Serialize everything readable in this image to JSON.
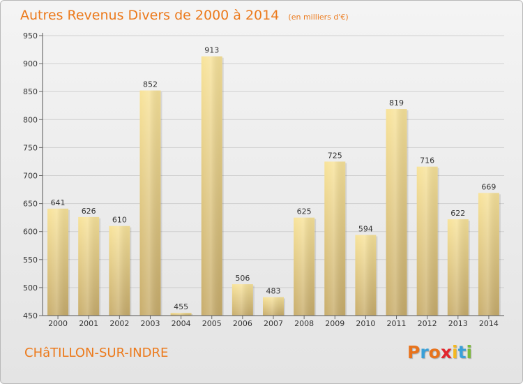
{
  "chart_data": {
    "type": "bar",
    "title": "Autres Revenus Divers de 2000 à 2014",
    "unit": "(en milliers d'€)",
    "categories": [
      "2000",
      "2001",
      "2002",
      "2003",
      "2004",
      "2005",
      "2006",
      "2007",
      "2008",
      "2009",
      "2010",
      "2011",
      "2012",
      "2013",
      "2014"
    ],
    "values": [
      641,
      626,
      610,
      852,
      455,
      913,
      506,
      483,
      625,
      725,
      594,
      819,
      716,
      622,
      669
    ],
    "ylim": [
      450,
      950
    ],
    "yticks": [
      450,
      500,
      550,
      600,
      650,
      700,
      750,
      800,
      850,
      900,
      950
    ],
    "grid": true,
    "bar_color": "#e7cd84"
  },
  "footer": {
    "commune": "CHâTILLON-SUR-INDRE",
    "brand": "Proxiti",
    "brand_colors": [
      "#e8731c",
      "#3aa0d8",
      "#e8731c",
      "#e2262d",
      "#f4b820",
      "#3aa0d8",
      "#7cba3a"
    ]
  },
  "colors": {
    "title": "#ec7a1c",
    "background_top": "#f4f4f4",
    "background_bottom": "#e4e4e4"
  }
}
